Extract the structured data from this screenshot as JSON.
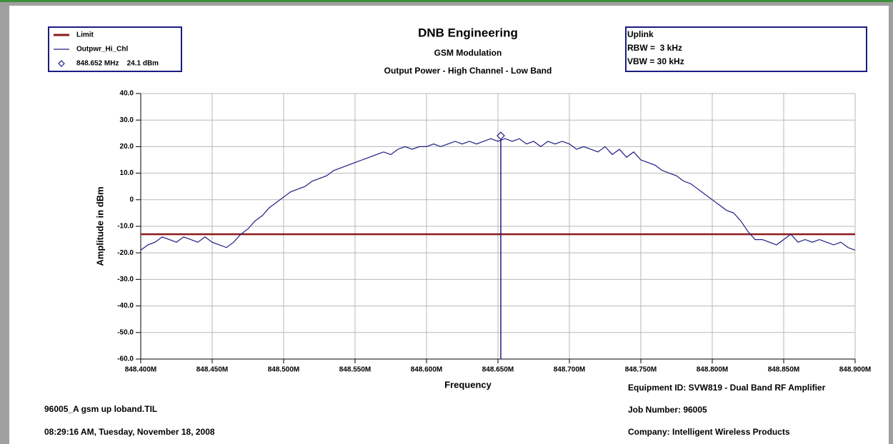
{
  "chart_data": {
    "type": "line",
    "title": "DNB Engineering",
    "subtitle": [
      "GSM Modulation",
      "Output Power - High Channel - Low Band"
    ],
    "info_box": [
      "Uplink",
      "RBW =  3 kHz",
      "VBW = 30 kHz"
    ],
    "footer_left": [
      "96005_A gsm up loband.TIL",
      "08:29:16 AM, Tuesday, November 18, 2008"
    ],
    "footer_right": [
      "Equipment ID: SVW819 - Dual Band RF Amplifier",
      "Job Number: 96005",
      "Company: Intelligent Wireless Products"
    ],
    "x_label": "Frequency",
    "y_label": "Amplitude in dBm",
    "xlim": [
      848.4,
      848.9
    ],
    "ylim": [
      -60,
      40
    ],
    "xticks": [
      {
        "value": 848.4,
        "label": "848.400M"
      },
      {
        "value": 848.45,
        "label": "848.450M"
      },
      {
        "value": 848.5,
        "label": "848.500M"
      },
      {
        "value": 848.55,
        "label": "848.550M"
      },
      {
        "value": 848.6,
        "label": "848.600M"
      },
      {
        "value": 848.65,
        "label": "848.650M"
      },
      {
        "value": 848.7,
        "label": "848.700M"
      },
      {
        "value": 848.75,
        "label": "848.750M"
      },
      {
        "value": 848.8,
        "label": "848.800M"
      },
      {
        "value": 848.85,
        "label": "848.850M"
      },
      {
        "value": 848.9,
        "label": "848.900M"
      }
    ],
    "yticks": [
      {
        "value": 40,
        "label": "40.0"
      },
      {
        "value": 30,
        "label": "30.0"
      },
      {
        "value": 20,
        "label": "20.0"
      },
      {
        "value": 10,
        "label": "10.0"
      },
      0,
      {
        "value": -10,
        "label": "-10.0"
      },
      {
        "value": -20,
        "label": "-20.0"
      },
      {
        "value": -30,
        "label": "-30.0"
      },
      {
        "value": -40,
        "label": "-40.0"
      },
      {
        "value": -50,
        "label": "-50.0"
      },
      {
        "value": -60,
        "label": "-60.0"
      }
    ],
    "grid": true,
    "legend": "top-left",
    "series": [
      {
        "name": "Limit",
        "color": "#8b1a1a",
        "x": [
          848.4,
          848.9
        ],
        "values": [
          -13,
          -13
        ]
      },
      {
        "name": "Outpwr_Hi_Chl",
        "color": "#1c1c82",
        "x": [
          848.4,
          848.405,
          848.41,
          848.415,
          848.42,
          848.425,
          848.43,
          848.435,
          848.44,
          848.445,
          848.45,
          848.455,
          848.46,
          848.465,
          848.47,
          848.475,
          848.48,
          848.485,
          848.49,
          848.495,
          848.5,
          848.505,
          848.51,
          848.515,
          848.52,
          848.525,
          848.53,
          848.535,
          848.54,
          848.545,
          848.55,
          848.555,
          848.56,
          848.565,
          848.57,
          848.575,
          848.58,
          848.585,
          848.59,
          848.595,
          848.6,
          848.605,
          848.61,
          848.615,
          848.62,
          848.625,
          848.63,
          848.635,
          848.64,
          848.645,
          848.65,
          848.655,
          848.66,
          848.665,
          848.67,
          848.675,
          848.68,
          848.685,
          848.69,
          848.695,
          848.7,
          848.705,
          848.71,
          848.715,
          848.72,
          848.725,
          848.73,
          848.735,
          848.74,
          848.745,
          848.75,
          848.755,
          848.76,
          848.765,
          848.77,
          848.775,
          848.78,
          848.785,
          848.79,
          848.795,
          848.8,
          848.805,
          848.81,
          848.815,
          848.82,
          848.825,
          848.83,
          848.835,
          848.84,
          848.845,
          848.85,
          848.855,
          848.86,
          848.865,
          848.87,
          848.875,
          848.88,
          848.885,
          848.89,
          848.895,
          848.9
        ],
        "values": [
          -19,
          -17,
          -16,
          -14,
          -15,
          -16,
          -14,
          -15,
          -16,
          -14,
          -16,
          -17,
          -18,
          -16,
          -13,
          -11,
          -8,
          -6,
          -3,
          -1,
          1,
          3,
          4,
          5,
          7,
          8,
          9,
          11,
          12,
          13,
          14,
          15,
          16,
          17,
          18,
          17,
          19,
          20,
          19,
          20,
          20,
          21,
          20,
          21,
          22,
          21,
          22,
          21,
          22,
          23,
          22,
          23,
          22,
          23,
          21,
          22,
          20,
          22,
          21,
          22,
          21,
          19,
          20,
          19,
          18,
          20,
          17,
          19,
          16,
          18,
          15,
          14,
          13,
          11,
          10,
          9,
          7,
          6,
          4,
          2,
          0,
          -2,
          -4,
          -5,
          -8,
          -12,
          -15,
          -15,
          -16,
          -17,
          -15,
          -13,
          -16,
          -15,
          -16,
          -15,
          -16,
          -17,
          -16,
          -18,
          -19
        ]
      }
    ],
    "marker": {
      "x": 848.652,
      "y": 24.1,
      "label": "848.652 MHz    24.1 dBm",
      "color": "#1c1c82"
    }
  }
}
